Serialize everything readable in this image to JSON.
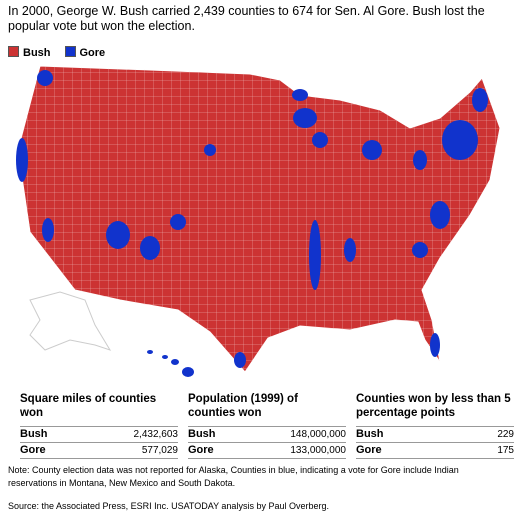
{
  "intro": "In 2000, George W. Bush carried 2,439 counties to 674 for Sen. Al Gore. Bush lost the popular vote but won the election.",
  "legend": [
    {
      "label": "Bush",
      "color": "#cc3333"
    },
    {
      "label": "Gore",
      "color": "#1133cc"
    }
  ],
  "panels": [
    {
      "title": "Square miles of counties won",
      "rows": [
        [
          "Bush",
          "2,432,603"
        ],
        [
          "Gore",
          "577,029"
        ]
      ]
    },
    {
      "title": "Population (1999) of counties won",
      "rows": [
        [
          "Bush",
          "148,000,000"
        ],
        [
          "Gore",
          "133,000,000"
        ]
      ]
    },
    {
      "title": "Counties won by less than 5 percentage points",
      "rows": [
        [
          "Bush",
          "229"
        ],
        [
          "Gore",
          "175"
        ]
      ]
    }
  ],
  "note": "Note: County election data was not reported for Alaska, Counties in blue, indicating a vote for Gore include Indian reservations in Montana, New Mexico and South Dakota.",
  "source": "Source: the Associated Press, ESRI Inc. USATODAY analysis by Paul Overberg."
}
